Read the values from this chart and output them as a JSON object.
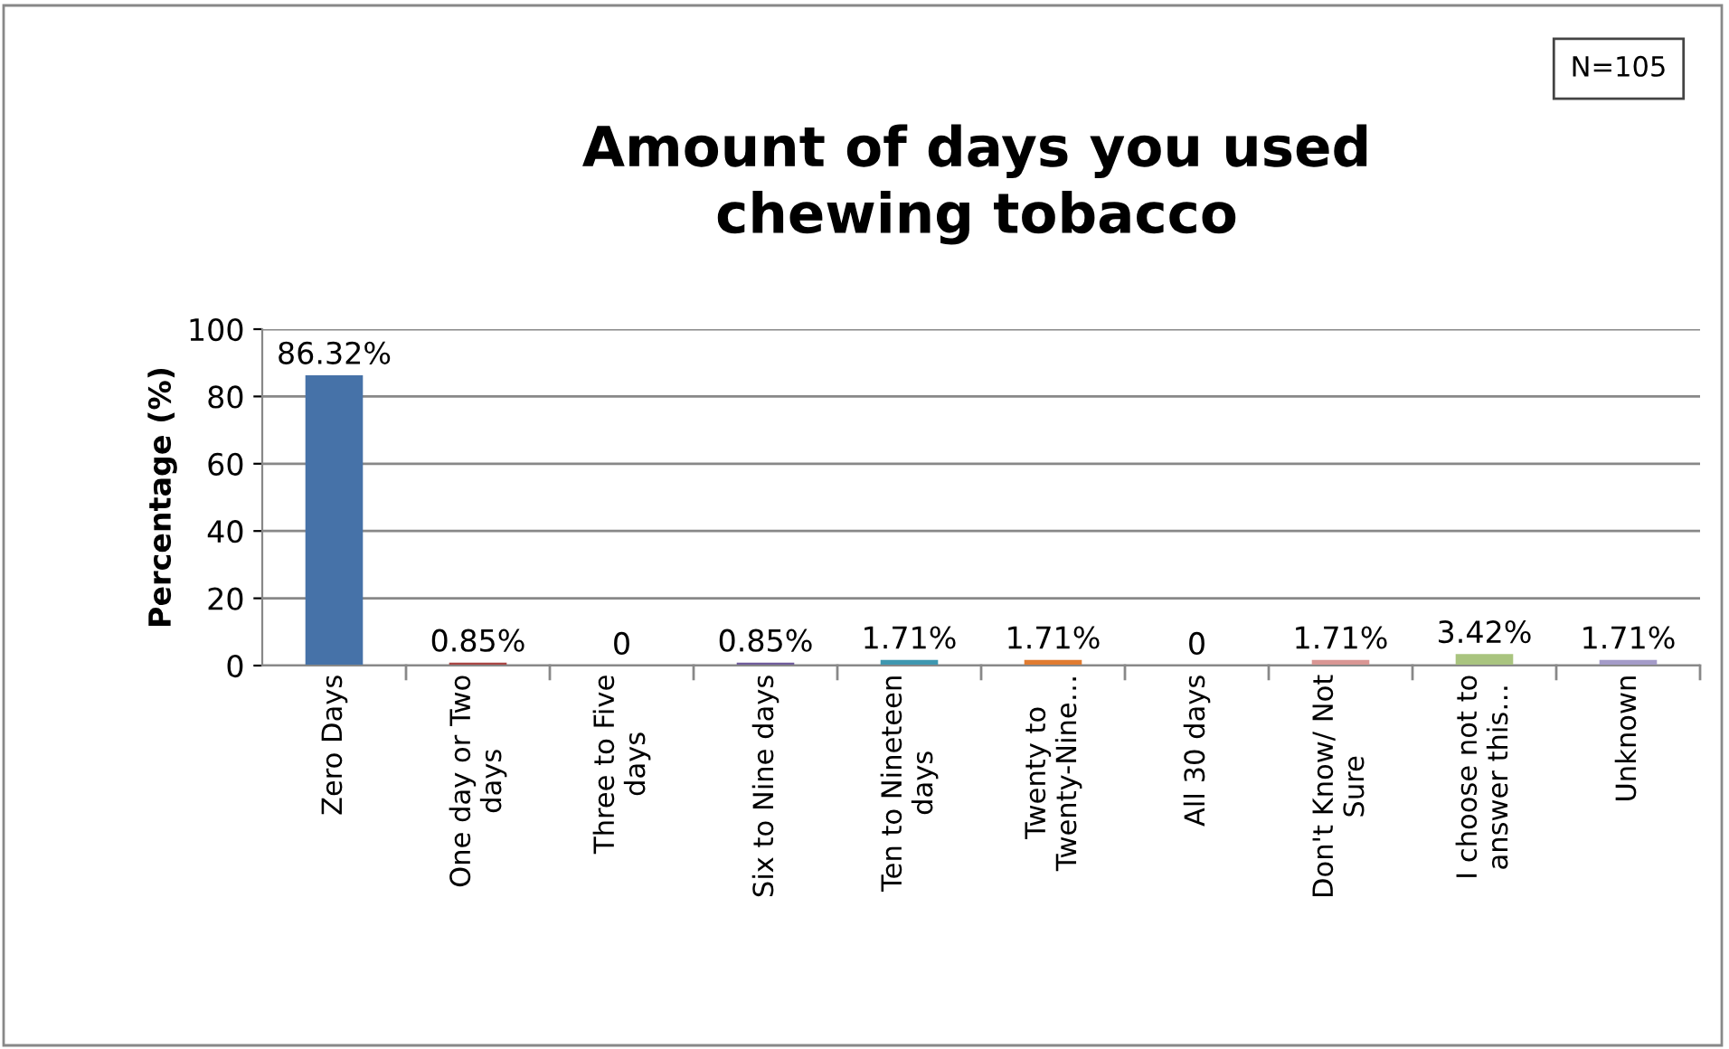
{
  "chart_data": {
    "type": "bar",
    "title": "Amount of days you used\nchewing tobacco",
    "ylabel": "Percentage (%)",
    "annotations": [
      "N=105"
    ],
    "categories": [
      "Zero Days",
      "One day or Two\ndays",
      "Three to Five\ndays",
      "Six to Nine days",
      "Ten to Nineteen\ndays",
      "Twenty to\nTwenty-Nine…",
      "All 30 days",
      "Don't Know/ Not\nSure",
      "I choose not to\nanswer this…",
      "Unknown"
    ],
    "values": [
      86.32,
      0.85,
      0,
      0.85,
      1.71,
      1.71,
      0,
      1.71,
      3.42,
      1.71
    ],
    "colors": [
      "#4672a8",
      "#a94543",
      "#89a54e",
      "#6f5b9b",
      "#3e97b0",
      "#e07b30",
      "#4672a8",
      "#d99694",
      "#a9c47f",
      "#a49bc8"
    ],
    "value_labels": [
      "86.32%",
      "0.85%",
      "0",
      "0.85%",
      "1.71%",
      "1.71%",
      "0",
      "1.71%",
      "3.42%",
      "1.71%"
    ],
    "ylim": [
      0,
      100
    ],
    "yticks": [
      0,
      20,
      40,
      60,
      80,
      100
    ],
    "grid": "y",
    "legend": false
  }
}
